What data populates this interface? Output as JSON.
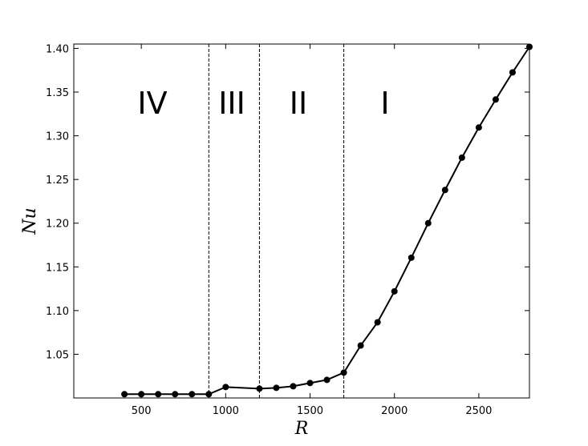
{
  "chart_data": {
    "type": "line",
    "x_label": "R",
    "y_label": "Nu",
    "x": [
      400,
      500,
      600,
      700,
      800,
      900,
      1000,
      1200,
      1300,
      1400,
      1500,
      1600,
      1700,
      1800,
      1900,
      2000,
      2100,
      2200,
      2300,
      2400,
      2500,
      2600,
      2700,
      2800
    ],
    "series": [
      {
        "color": "#000000",
        "values": [
          1.0043,
          1.0043,
          1.0043,
          1.0043,
          1.0043,
          1.0043,
          1.0125,
          1.0107,
          1.0116,
          1.0134,
          1.0171,
          1.0207,
          1.029,
          1.06,
          1.0866,
          1.122,
          1.1605,
          1.2,
          1.238,
          1.275,
          1.3095,
          1.3415,
          1.3726,
          1.4018
        ]
      }
    ],
    "xlim": [
      100,
      2800
    ],
    "ylim": [
      1.0,
      1.405
    ],
    "xticks": [
      500,
      1000,
      1500,
      2000,
      2500
    ],
    "yticks": [
      1.05,
      {
        "value": 1.1,
        "label": "1.10"
      },
      1.15,
      {
        "value": 1.2,
        "label": "1.20"
      },
      1.25,
      {
        "value": 1.3,
        "label": "1.30"
      },
      1.35,
      {
        "value": 1.4,
        "label": "1.40"
      }
    ],
    "vlines": [
      900,
      1200,
      1700
    ],
    "regions": [
      "IV",
      "III",
      "II",
      "I"
    ]
  }
}
